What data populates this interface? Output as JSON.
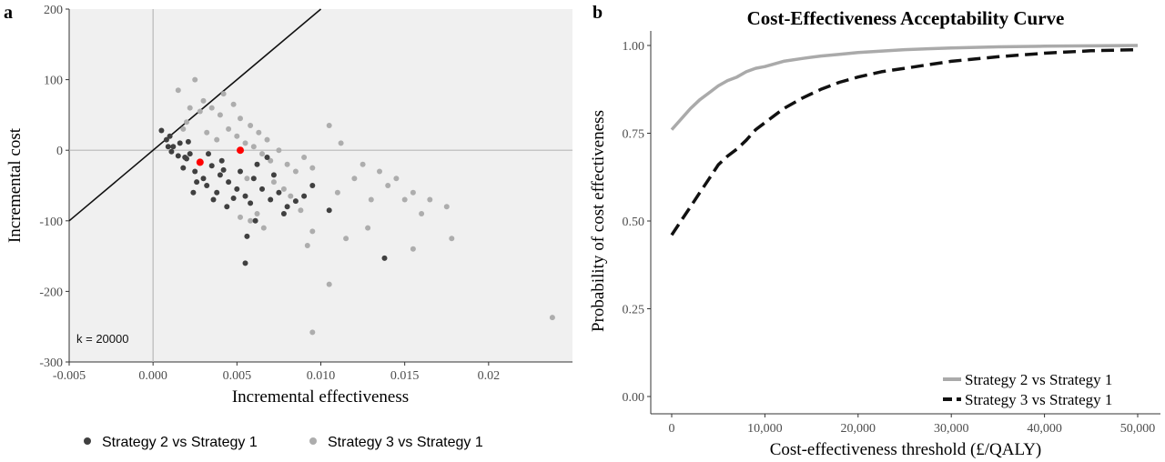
{
  "panels": {
    "a_label": "a",
    "b_label": "b"
  },
  "chart_data": [
    {
      "type": "scatter",
      "title": "",
      "xlabel": "Incremental effectiveness",
      "ylabel": "Incremental cost",
      "xlim": [
        -0.005,
        0.025
      ],
      "ylim": [
        -300,
        200
      ],
      "x_ticks": [
        -0.005,
        0.0,
        0.005,
        0.01,
        0.015,
        0.02
      ],
      "x_tick_labels": [
        "-0.005",
        "0.000",
        "0.005",
        "0.010",
        "0.015",
        "0.02"
      ],
      "y_ticks": [
        -300,
        -200,
        -100,
        0,
        100,
        200
      ],
      "y_tick_labels": [
        "-300",
        "-200",
        "-100",
        "0",
        "100",
        "200"
      ],
      "annotation": "k = 20000",
      "wtp_line": {
        "slope": 20000,
        "color": "#111111"
      },
      "grid": false,
      "background": "#f0f0f0",
      "legend_position": "bottom",
      "series": [
        {
          "name": "Strategy 2 vs Strategy 1",
          "color": "#404040",
          "points": [
            [
              0.0005,
              28
            ],
            [
              0.0008,
              15
            ],
            [
              0.0012,
              5
            ],
            [
              0.0015,
              -8
            ],
            [
              0.002,
              -12
            ],
            [
              0.001,
              20
            ],
            [
              0.0018,
              -25
            ],
            [
              0.0025,
              -30
            ],
            [
              0.003,
              -40
            ],
            [
              0.0022,
              -5
            ],
            [
              0.0028,
              -18
            ],
            [
              0.0035,
              -22
            ],
            [
              0.004,
              -35
            ],
            [
              0.0045,
              -45
            ],
            [
              0.005,
              -55
            ],
            [
              0.0032,
              -50
            ],
            [
              0.0038,
              -60
            ],
            [
              0.0042,
              -28
            ],
            [
              0.0026,
              -45
            ],
            [
              0.0019,
              -10
            ],
            [
              0.0055,
              -65
            ],
            [
              0.006,
              -40
            ],
            [
              0.0065,
              -55
            ],
            [
              0.007,
              -70
            ],
            [
              0.0075,
              -60
            ],
            [
              0.008,
              -80
            ],
            [
              0.0085,
              -72
            ],
            [
              0.009,
              -65
            ],
            [
              0.0095,
              -50
            ],
            [
              0.0105,
              -85
            ],
            [
              0.0058,
              -75
            ],
            [
              0.0048,
              -68
            ],
            [
              0.0052,
              -30
            ],
            [
              0.0062,
              -20
            ],
            [
              0.0068,
              -10
            ],
            [
              0.0072,
              -35
            ],
            [
              0.0036,
              -70
            ],
            [
              0.0044,
              -80
            ],
            [
              0.0016,
              10
            ],
            [
              0.0009,
              5
            ],
            [
              0.0021,
              12
            ],
            [
              0.0033,
              -5
            ],
            [
              0.0041,
              -15
            ],
            [
              0.0011,
              -2
            ],
            [
              0.0024,
              -60
            ],
            [
              0.0061,
              -100
            ],
            [
              0.0056,
              -122
            ],
            [
              0.0055,
              -160
            ],
            [
              0.0138,
              -153
            ],
            [
              0.0078,
              -90
            ]
          ]
        },
        {
          "name": "Strategy 3 vs Strategy 1",
          "color": "#adadad",
          "points": [
            [
              0.0015,
              85
            ],
            [
              0.0025,
              100
            ],
            [
              0.003,
              70
            ],
            [
              0.0035,
              60
            ],
            [
              0.004,
              50
            ],
            [
              0.002,
              40
            ],
            [
              0.0045,
              30
            ],
            [
              0.005,
              20
            ],
            [
              0.0055,
              10
            ],
            [
              0.006,
              5
            ],
            [
              0.0065,
              -5
            ],
            [
              0.007,
              -15
            ],
            [
              0.0075,
              0
            ],
            [
              0.008,
              -20
            ],
            [
              0.0085,
              -30
            ],
            [
              0.009,
              -10
            ],
            [
              0.0095,
              -25
            ],
            [
              0.0105,
              35
            ],
            [
              0.0112,
              10
            ],
            [
              0.011,
              -60
            ],
            [
              0.012,
              -40
            ],
            [
              0.0125,
              -20
            ],
            [
              0.013,
              -70
            ],
            [
              0.0135,
              -30
            ],
            [
              0.014,
              -50
            ],
            [
              0.0145,
              -40
            ],
            [
              0.015,
              -70
            ],
            [
              0.0155,
              -60
            ],
            [
              0.016,
              -90
            ],
            [
              0.0165,
              -70
            ],
            [
              0.0175,
              -80
            ],
            [
              0.0178,
              -125
            ],
            [
              0.0155,
              -140
            ],
            [
              0.0128,
              -110
            ],
            [
              0.0115,
              -125
            ],
            [
              0.0095,
              -115
            ],
            [
              0.0092,
              -135
            ],
            [
              0.0105,
              -190
            ],
            [
              0.0095,
              -258
            ],
            [
              0.0238,
              -237
            ],
            [
              0.0042,
              80
            ],
            [
              0.0048,
              65
            ],
            [
              0.0052,
              45
            ],
            [
              0.0058,
              35
            ],
            [
              0.0063,
              25
            ],
            [
              0.0068,
              15
            ],
            [
              0.0072,
              -45
            ],
            [
              0.0078,
              -55
            ],
            [
              0.0082,
              -65
            ],
            [
              0.0088,
              -85
            ],
            [
              0.0032,
              25
            ],
            [
              0.0038,
              15
            ],
            [
              0.0028,
              55
            ],
            [
              0.0022,
              60
            ],
            [
              0.0018,
              30
            ],
            [
              0.0062,
              -90
            ],
            [
              0.0066,
              -110
            ],
            [
              0.0058,
              -100
            ],
            [
              0.0052,
              -95
            ],
            [
              0.0056,
              -40
            ]
          ]
        },
        {
          "name": "mean",
          "color": "#ff0000",
          "points": [
            [
              0.0028,
              -17
            ],
            [
              0.0052,
              0
            ]
          ]
        }
      ]
    },
    {
      "type": "line",
      "title": "Cost-Effectiveness Acceptability Curve",
      "xlabel": "Cost-effectiveness threshold (£/QALY)",
      "ylabel": "Probability of cost effectiveness",
      "xlim": [
        0,
        50000
      ],
      "ylim": [
        0,
        1
      ],
      "x_ticks": [
        0,
        10000,
        20000,
        30000,
        40000,
        50000
      ],
      "x_tick_labels": [
        "0",
        "10,000",
        "20,000",
        "30,000",
        "40,000",
        "50,000"
      ],
      "y_ticks": [
        0,
        0.25,
        0.5,
        0.75,
        1.0
      ],
      "y_tick_labels": [
        "0.00",
        "0.25",
        "0.50",
        "0.75",
        "1.00"
      ],
      "legend_position": "bottom-right",
      "grid": false,
      "series": [
        {
          "name": "Strategy 2 vs Strategy 1",
          "color": "#aaaaaa",
          "style": "solid",
          "x": [
            0,
            1000,
            2000,
            3000,
            4000,
            5000,
            6000,
            7000,
            8000,
            9000,
            10000,
            12000,
            14000,
            16000,
            18000,
            20000,
            25000,
            30000,
            35000,
            40000,
            45000,
            50000
          ],
          "y": [
            0.76,
            0.79,
            0.82,
            0.845,
            0.865,
            0.885,
            0.9,
            0.91,
            0.925,
            0.935,
            0.94,
            0.955,
            0.963,
            0.97,
            0.975,
            0.98,
            0.988,
            0.993,
            0.996,
            0.998,
            0.999,
            1.0
          ]
        },
        {
          "name": "Strategy 3 vs Strategy 1",
          "color": "#111111",
          "style": "dashed",
          "x": [
            0,
            1000,
            2000,
            3000,
            4000,
            5000,
            6000,
            7000,
            8000,
            9000,
            10000,
            12000,
            14000,
            16000,
            18000,
            20000,
            22500,
            25000,
            27500,
            30000,
            35000,
            40000,
            45000,
            50000
          ],
          "y": [
            0.46,
            0.5,
            0.54,
            0.58,
            0.62,
            0.66,
            0.685,
            0.705,
            0.73,
            0.76,
            0.78,
            0.82,
            0.85,
            0.875,
            0.895,
            0.91,
            0.925,
            0.935,
            0.945,
            0.955,
            0.968,
            0.978,
            0.985,
            0.988
          ]
        }
      ]
    }
  ]
}
